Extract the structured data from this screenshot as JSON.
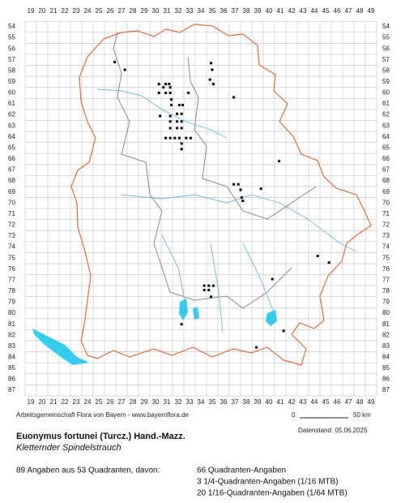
{
  "map": {
    "columns": [
      19,
      20,
      21,
      22,
      23,
      24,
      25,
      26,
      27,
      28,
      29,
      30,
      31,
      32,
      33,
      34,
      35,
      36,
      37,
      38,
      39,
      40,
      41,
      42,
      43,
      44,
      45,
      46,
      47,
      48,
      49
    ],
    "rows": [
      54,
      55,
      56,
      57,
      58,
      59,
      60,
      61,
      62,
      63,
      64,
      65,
      66,
      67,
      68,
      69,
      70,
      71,
      72,
      73,
      74,
      75,
      76,
      77,
      78,
      79,
      80,
      81,
      82,
      83,
      84,
      85,
      86,
      87
    ],
    "points": [
      [
        26.4,
        57.2
      ],
      [
        27.3,
        57.9
      ],
      [
        34.9,
        57.3
      ],
      [
        35.0,
        57.9
      ],
      [
        34.8,
        58.8
      ],
      [
        35.1,
        59.2
      ],
      [
        30.3,
        59.2
      ],
      [
        30.9,
        59.2
      ],
      [
        31.2,
        59.2
      ],
      [
        30.7,
        59.5
      ],
      [
        31.3,
        59.5
      ],
      [
        30.3,
        60.0
      ],
      [
        30.9,
        60.0
      ],
      [
        31.3,
        60.0
      ],
      [
        31.4,
        60.6
      ],
      [
        32.9,
        60.0
      ],
      [
        36.9,
        60.4
      ],
      [
        31.4,
        61.1
      ],
      [
        32.1,
        61.1
      ],
      [
        32.4,
        61.1
      ],
      [
        31.9,
        61.9
      ],
      [
        32.3,
        61.9
      ],
      [
        30.4,
        62.1
      ],
      [
        31.3,
        62.1
      ],
      [
        31.3,
        62.6
      ],
      [
        31.9,
        62.6
      ],
      [
        32.3,
        62.6
      ],
      [
        31.3,
        63.2
      ],
      [
        31.9,
        63.2
      ],
      [
        32.3,
        63.2
      ],
      [
        30.9,
        64.1
      ],
      [
        31.3,
        64.1
      ],
      [
        31.7,
        64.1
      ],
      [
        32.1,
        64.1
      ],
      [
        32.7,
        64.1
      ],
      [
        33.1,
        64.1
      ],
      [
        32.3,
        64.6
      ],
      [
        32.3,
        65.1
      ],
      [
        40.9,
        66.2
      ],
      [
        36.9,
        68.3
      ],
      [
        37.3,
        68.3
      ],
      [
        37.5,
        68.8
      ],
      [
        39.3,
        68.7
      ],
      [
        37.6,
        69.5
      ],
      [
        37.7,
        69.8
      ],
      [
        44.3,
        74.8
      ],
      [
        45.3,
        75.4
      ],
      [
        40.3,
        76.9
      ],
      [
        34.3,
        77.5
      ],
      [
        34.7,
        77.5
      ],
      [
        35.1,
        77.5
      ],
      [
        34.3,
        77.9
      ],
      [
        34.7,
        77.9
      ],
      [
        34.9,
        78.5
      ],
      [
        32.3,
        81.0
      ],
      [
        41.3,
        81.6
      ],
      [
        38.9,
        83.1
      ]
    ],
    "credit": "Arbeitsgemeinschaft Flora von Bayern - www.bayernflora.de",
    "date": "Datenstand: 05.06.2025",
    "scale_start": "0",
    "scale_end": "50 km"
  },
  "species": {
    "name": "Euonymus fortunei (Turcz.) Hand.-Mazz.",
    "common": "Kletternder Spindelstrauch"
  },
  "summary": {
    "total": "89 Angaben aus 53 Quadranten, davon:",
    "lines": [
      "66 Quadranten-Angaben",
      "3 1/4-Quadranten-Angaben (1/16 MTB)",
      "20 1/16-Quadranten-Angaben (1/64 MTB)"
    ]
  }
}
